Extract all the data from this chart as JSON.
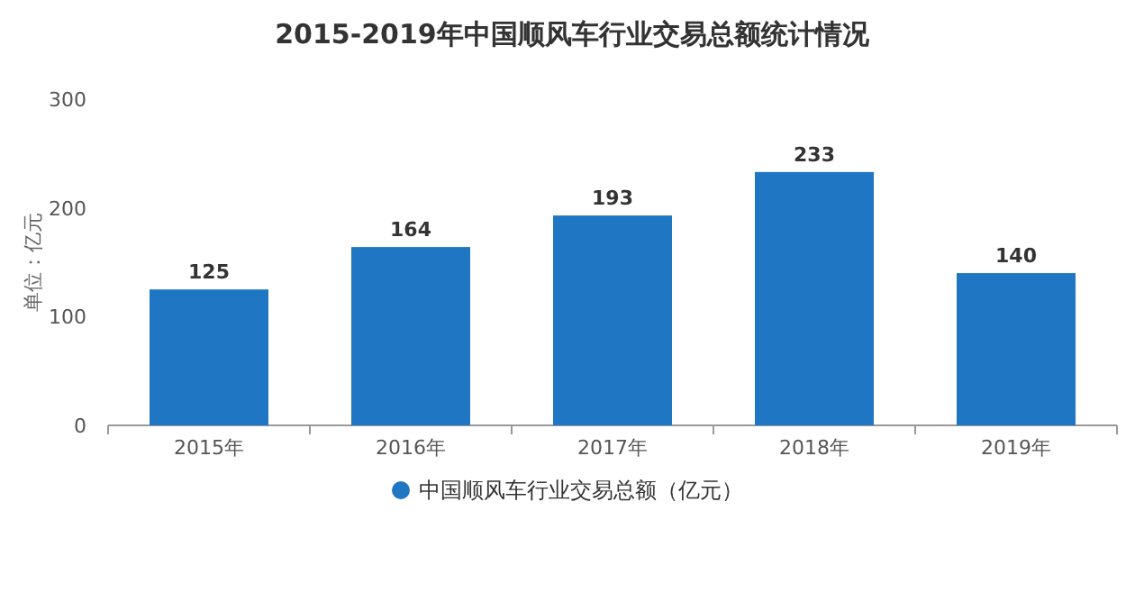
{
  "chart_data": {
    "type": "bar",
    "title": "2015-2019年中国顺风车行业交易总额统计情况",
    "ylabel": "单位：亿元",
    "categories": [
      "2015年",
      "2016年",
      "2017年",
      "2018年",
      "2019年"
    ],
    "series": [
      {
        "name": "中国顺风车行业交易总额（亿元）",
        "color": "#1f77c4",
        "values": [
          125,
          164,
          193,
          233,
          140
        ]
      }
    ],
    "ylim": [
      0,
      300
    ],
    "yticks": [
      0,
      100,
      200,
      300
    ],
    "data_labels": true,
    "legend": "bottom"
  }
}
